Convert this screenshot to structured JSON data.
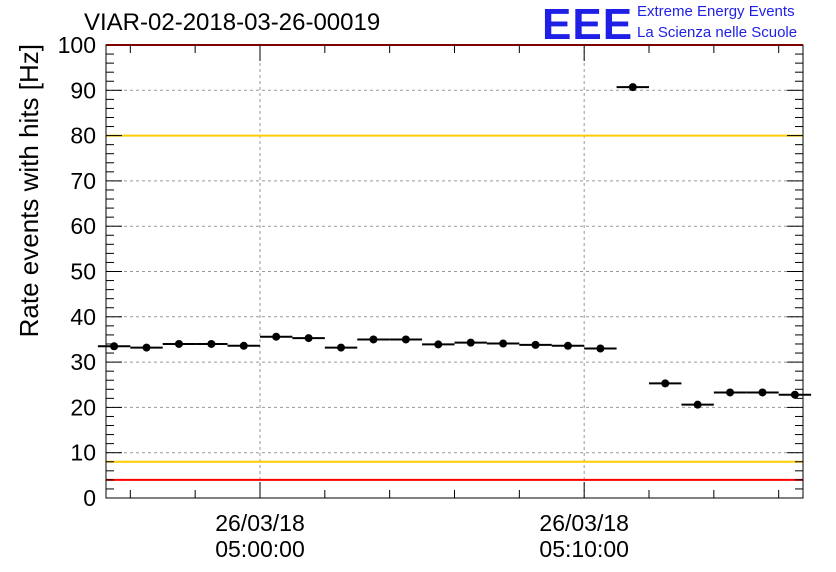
{
  "title": "VIAR-02-2018-03-26-00019",
  "logo": {
    "mark": "EEE",
    "line1": "Extreme Energy Events",
    "line2": "La Scienza nelle Scuole"
  },
  "colors": {
    "limit_red": "#ff0000",
    "limit_yellow": "#ffcc00",
    "points": "#000000",
    "grid": "#999999",
    "logo": "#1f1fe6"
  },
  "chart_data": {
    "type": "scatter",
    "title": "VIAR-02-2018-03-26-00019",
    "ylabel": "Rate events with hits [Hz]",
    "xlabel": "",
    "ylim": [
      0,
      100
    ],
    "xlim": [
      "2018-03-26 04:55:15",
      "2018-03-26 05:16:45"
    ],
    "y_ticks": [
      0,
      10,
      20,
      30,
      40,
      50,
      60,
      70,
      80,
      90,
      100
    ],
    "x_tick_labels": [
      {
        "time": "2018-03-26 05:00:00",
        "date": "26/03/18",
        "clock": "05:00:00"
      },
      {
        "time": "2018-03-26 05:10:00",
        "date": "26/03/18",
        "clock": "05:10:00"
      }
    ],
    "grid": true,
    "bin_width_seconds": 60,
    "points": [
      {
        "x": "2018-03-26 04:55:30",
        "y": 33.5
      },
      {
        "x": "2018-03-26 04:56:30",
        "y": 33.2
      },
      {
        "x": "2018-03-26 04:57:30",
        "y": 34.0
      },
      {
        "x": "2018-03-26 04:58:30",
        "y": 34.0
      },
      {
        "x": "2018-03-26 04:59:30",
        "y": 33.6
      },
      {
        "x": "2018-03-26 05:00:30",
        "y": 35.6
      },
      {
        "x": "2018-03-26 05:01:30",
        "y": 35.3
      },
      {
        "x": "2018-03-26 05:02:30",
        "y": 33.2
      },
      {
        "x": "2018-03-26 05:03:30",
        "y": 35.0
      },
      {
        "x": "2018-03-26 05:04:30",
        "y": 35.0
      },
      {
        "x": "2018-03-26 05:05:30",
        "y": 33.9
      },
      {
        "x": "2018-03-26 05:06:30",
        "y": 34.3
      },
      {
        "x": "2018-03-26 05:07:30",
        "y": 34.1
      },
      {
        "x": "2018-03-26 05:08:30",
        "y": 33.8
      },
      {
        "x": "2018-03-26 05:09:30",
        "y": 33.6
      },
      {
        "x": "2018-03-26 05:10:30",
        "y": 33.0
      },
      {
        "x": "2018-03-26 05:11:30",
        "y": 90.7
      },
      {
        "x": "2018-03-26 05:12:30",
        "y": 25.3
      },
      {
        "x": "2018-03-26 05:13:30",
        "y": 20.6
      },
      {
        "x": "2018-03-26 05:14:30",
        "y": 23.3
      },
      {
        "x": "2018-03-26 05:15:30",
        "y": 23.3
      },
      {
        "x": "2018-03-26 05:16:30",
        "y": 22.8
      }
    ],
    "reference_lines": [
      {
        "y": 100,
        "color": "#ff0000"
      },
      {
        "y": 80,
        "color": "#ffcc00"
      },
      {
        "y": 8,
        "color": "#ffcc00"
      },
      {
        "y": 4,
        "color": "#ff0000"
      }
    ]
  }
}
